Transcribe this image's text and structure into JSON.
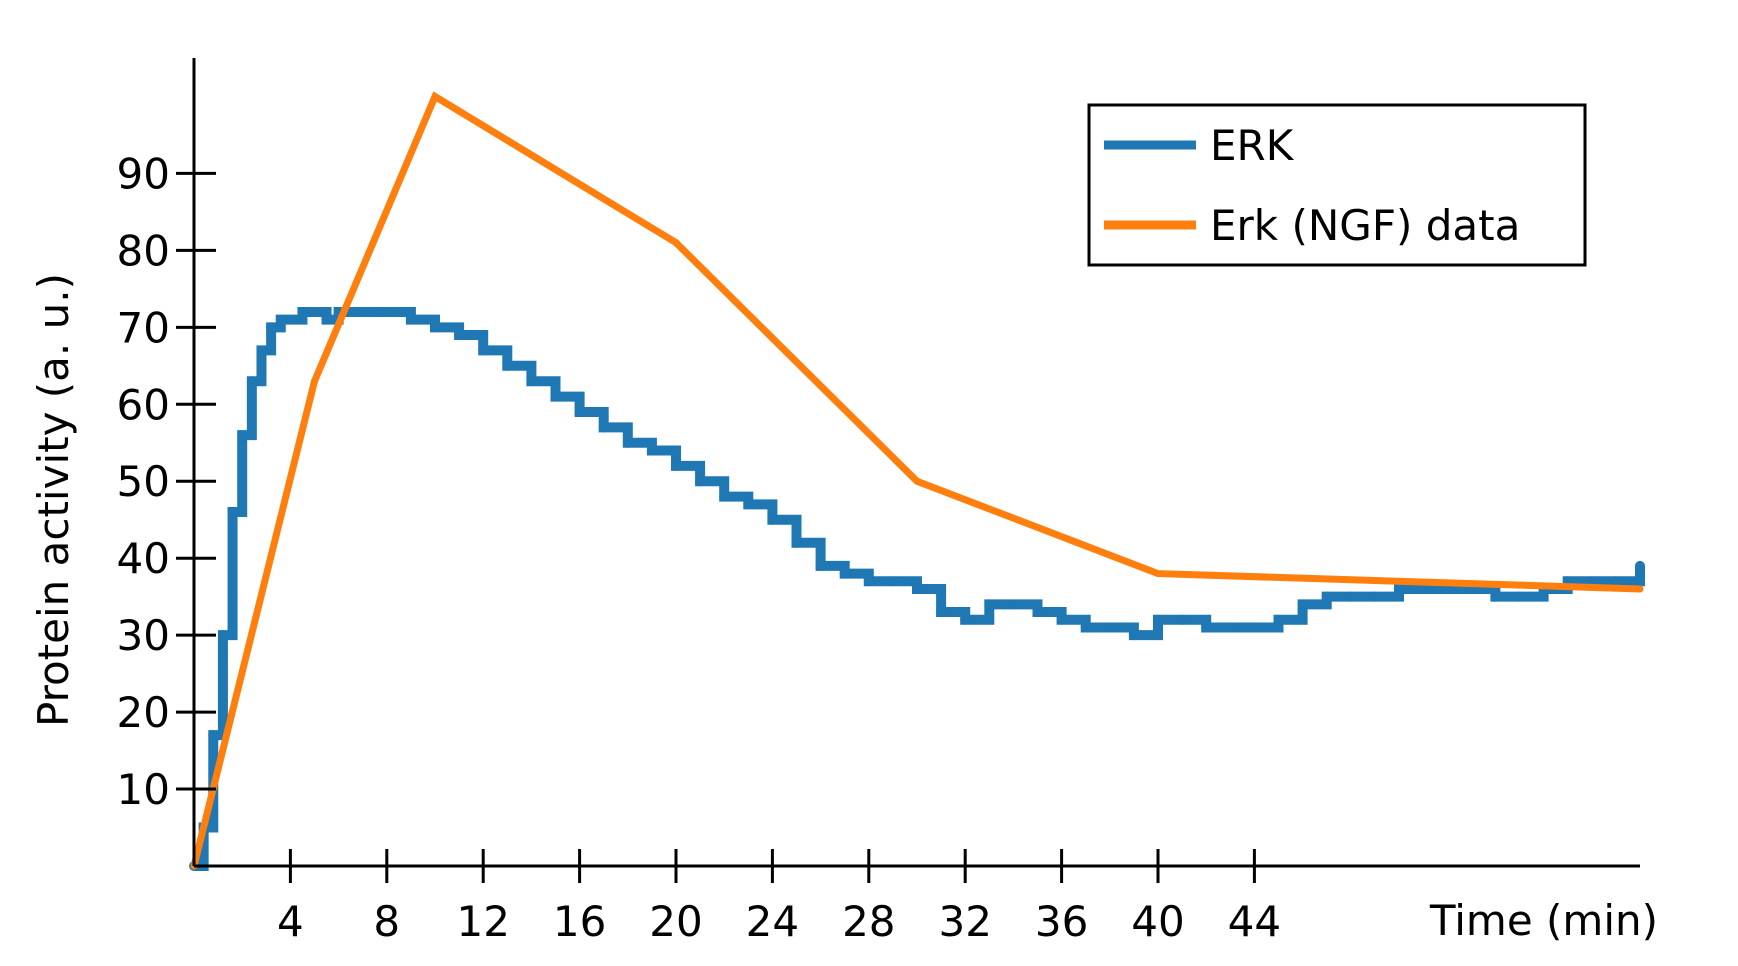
{
  "chart_data": {
    "type": "line",
    "title": "",
    "xlabel": "Time (min)",
    "ylabel": "Protein activity (a. u.)",
    "xlim": [
      0,
      60
    ],
    "ylim": [
      0,
      105
    ],
    "x_ticks": [
      4,
      8,
      12,
      16,
      20,
      24,
      28,
      32,
      36,
      40,
      44
    ],
    "x_tick_labels": [
      "4",
      "8",
      "12",
      "16",
      "20",
      "24",
      "28",
      "32",
      "36",
      "40",
      "44"
    ],
    "y_ticks": [
      10,
      20,
      30,
      40,
      50,
      60,
      70,
      80,
      90
    ],
    "y_tick_labels": [
      "10",
      "20",
      "30",
      "40",
      "50",
      "60",
      "70",
      "80",
      "90"
    ],
    "grid": false,
    "legend_position": "top-right",
    "series": [
      {
        "name": "ERK",
        "color": "#1f77b4",
        "style": "stepped",
        "x": [
          0,
          0.4,
          0.8,
          1.2,
          1.6,
          2.0,
          2.4,
          2.8,
          3.2,
          3.6,
          4.0,
          4.5,
          5.0,
          5.5,
          6,
          7,
          8,
          9,
          10,
          11,
          12,
          13,
          14,
          15,
          16,
          17,
          18,
          19,
          20,
          21,
          22,
          23,
          24,
          25,
          26,
          27,
          28,
          29,
          30,
          31,
          32,
          33,
          34,
          35,
          36,
          37,
          38,
          39,
          40,
          41,
          42,
          43,
          44,
          45,
          46,
          47,
          48,
          49,
          50,
          51,
          52,
          53,
          54,
          55,
          56,
          57,
          58,
          59,
          60
        ],
        "y": [
          0,
          5,
          17,
          30,
          46,
          56,
          63,
          67,
          70,
          71,
          71,
          72,
          72,
          71,
          72,
          72,
          72,
          71,
          70,
          69,
          67,
          65,
          63,
          61,
          59,
          57,
          55,
          54,
          52,
          50,
          48,
          47,
          45,
          42,
          39,
          38,
          37,
          37,
          36,
          33,
          32,
          34,
          34,
          33,
          32,
          31,
          31,
          30,
          32,
          32,
          31,
          31,
          31,
          32,
          34,
          35,
          35,
          35,
          36,
          36,
          36,
          36,
          35,
          35,
          36,
          37,
          37,
          37,
          39
        ]
      },
      {
        "name": "Erk (NGF) data",
        "color": "#ff7f0e",
        "style": "straight",
        "x": [
          0,
          5,
          10,
          20,
          30,
          40,
          60
        ],
        "y": [
          0,
          63,
          100,
          81,
          50,
          38,
          36
        ]
      }
    ]
  }
}
